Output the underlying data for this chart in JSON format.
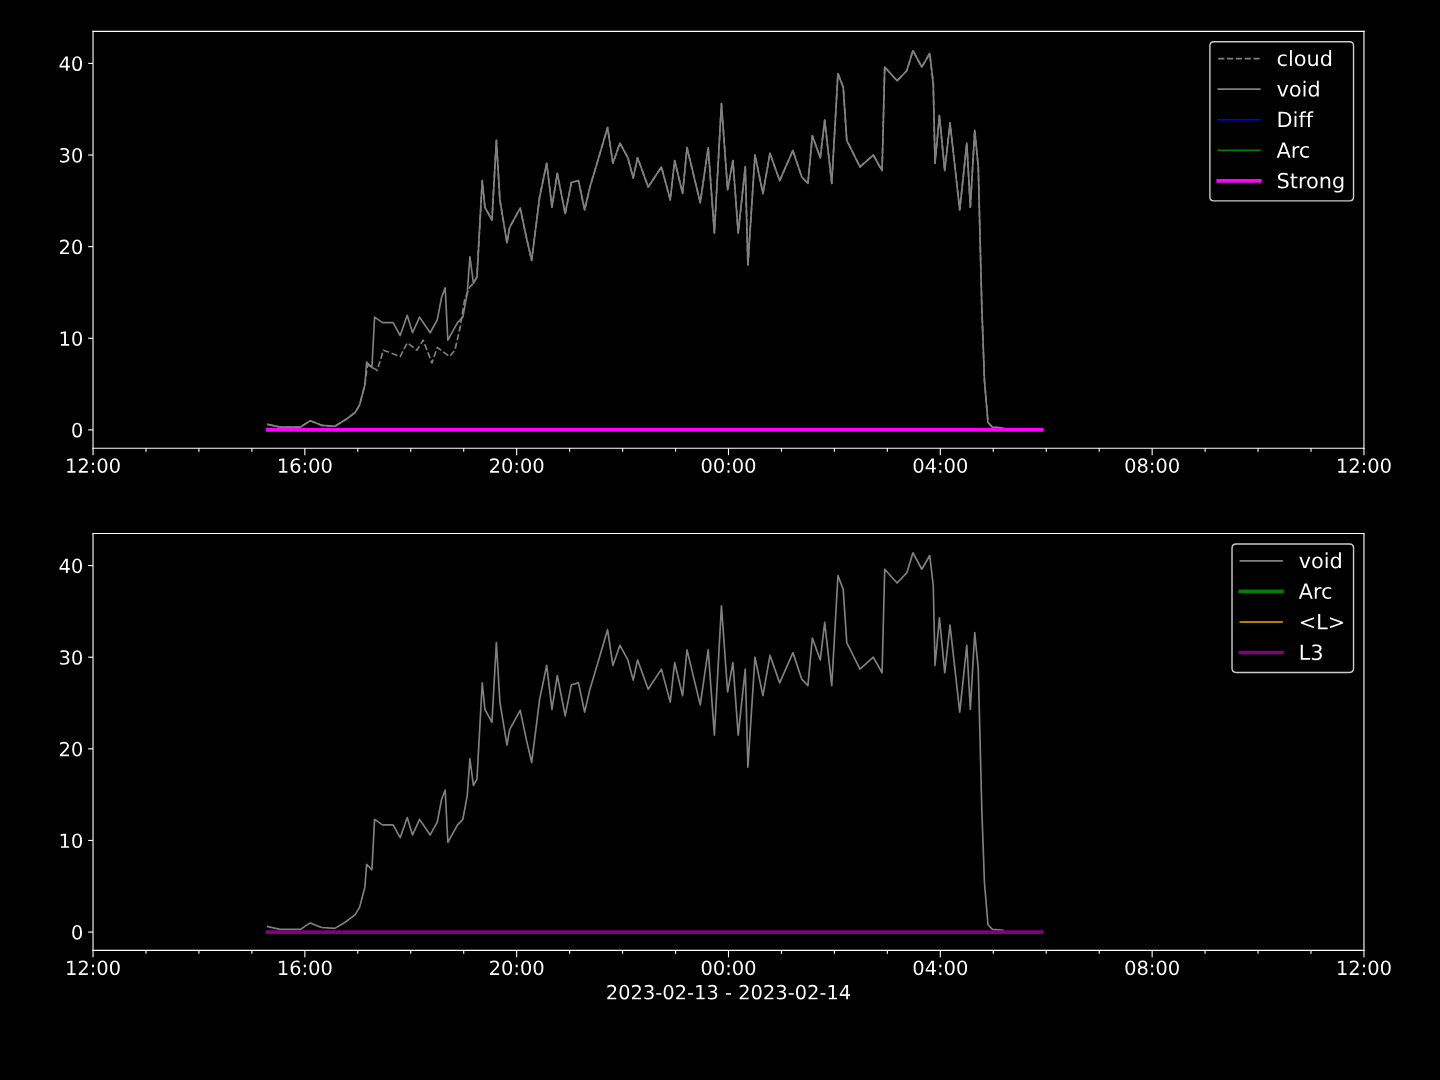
{
  "chart_data": [
    {
      "type": "line",
      "xlim": [
        "2023-02-13T12:00",
        "2023-02-14T12:00"
      ],
      "ylim": [
        -2,
        43.5
      ],
      "yticks": [
        0,
        10,
        20,
        30,
        40
      ],
      "xticks": [
        {
          "value": "2023-02-13T12:00",
          "label": "12:00"
        },
        {
          "value": "2023-02-13T13:00",
          "label": null
        },
        {
          "value": "2023-02-13T14:00",
          "label": null
        },
        {
          "value": "2023-02-13T15:00",
          "label": null
        },
        {
          "value": "2023-02-13T16:00",
          "label": "16:00"
        },
        {
          "value": "2023-02-13T17:00",
          "label": null
        },
        {
          "value": "2023-02-13T18:00",
          "label": null
        },
        {
          "value": "2023-02-13T19:00",
          "label": null
        },
        {
          "value": "2023-02-13T20:00",
          "label": "20:00"
        },
        {
          "value": "2023-02-13T21:00",
          "label": null
        },
        {
          "value": "2023-02-13T22:00",
          "label": null
        },
        {
          "value": "2023-02-13T23:00",
          "label": null
        },
        {
          "value": "2023-02-14T00:00",
          "label": "00:00"
        },
        {
          "value": "2023-02-14T01:00",
          "label": null
        },
        {
          "value": "2023-02-14T02:00",
          "label": null
        },
        {
          "value": "2023-02-14T03:00",
          "label": null
        },
        {
          "value": "2023-02-14T04:00",
          "label": "04:00"
        },
        {
          "value": "2023-02-14T05:00",
          "label": null
        },
        {
          "value": "2023-02-14T06:00",
          "label": null
        },
        {
          "value": "2023-02-14T07:00",
          "label": null
        },
        {
          "value": "2023-02-14T08:00",
          "label": "08:00"
        },
        {
          "value": "2023-02-14T09:00",
          "label": null
        },
        {
          "value": "2023-02-14T10:00",
          "label": null
        },
        {
          "value": "2023-02-14T11:00",
          "label": null
        },
        {
          "value": "2023-02-14T12:00",
          "label": "12:00"
        }
      ],
      "grid": false,
      "legend": "top right",
      "series": [
        {
          "name": "cloud",
          "color": "#808080",
          "line_style": "dashed",
          "x": [
            "2023-02-13T15:18",
            "2023-02-13T15:32",
            "2023-02-13T15:55",
            "2023-02-13T16:06",
            "2023-02-13T16:19",
            "2023-02-13T16:34",
            "2023-02-13T16:46",
            "2023-02-13T16:57",
            "2023-02-13T17:02",
            "2023-02-13T17:08",
            "2023-02-13T17:11",
            "2023-02-13T17:22",
            "2023-02-13T17:29",
            "2023-02-13T17:48",
            "2023-02-13T17:56",
            "2023-02-13T18:07",
            "2023-02-13T18:14",
            "2023-02-13T18:24",
            "2023-02-13T18:30",
            "2023-02-13T18:44",
            "2023-02-13T18:50",
            "2023-02-13T18:56",
            "2023-02-13T19:01",
            "2023-02-13T19:07",
            "2023-02-13T19:11",
            "2023-02-13T19:15",
            "2023-02-13T19:21",
            "2023-02-13T19:24",
            "2023-02-13T19:32",
            "2023-02-13T19:37",
            "2023-02-13T19:41",
            "2023-02-13T19:49",
            "2023-02-13T19:52",
            "2023-02-13T20:04",
            "2023-02-13T20:11",
            "2023-02-13T20:17",
            "2023-02-13T20:26",
            "2023-02-13T20:34",
            "2023-02-13T20:40",
            "2023-02-13T20:46",
            "2023-02-13T20:55",
            "2023-02-13T21:02",
            "2023-02-13T21:10",
            "2023-02-13T21:17",
            "2023-02-13T21:23",
            "2023-02-13T21:32",
            "2023-02-13T21:43",
            "2023-02-13T21:49",
            "2023-02-13T21:57",
            "2023-02-13T22:06",
            "2023-02-13T22:12",
            "2023-02-13T22:17",
            "2023-02-13T22:29",
            "2023-02-13T22:44",
            "2023-02-13T22:54",
            "2023-02-13T22:59",
            "2023-02-13T23:08",
            "2023-02-13T23:13",
            "2023-02-13T23:28",
            "2023-02-13T23:37",
            "2023-02-13T23:44",
            "2023-02-13T23:52",
            "2023-02-13T23:59",
            "2023-02-14T00:05",
            "2023-02-14T00:11",
            "2023-02-14T00:19",
            "2023-02-14T00:22",
            "2023-02-14T00:30",
            "2023-02-14T00:39",
            "2023-02-14T00:47",
            "2023-02-14T00:58",
            "2023-02-14T01:13",
            "2023-02-14T01:23",
            "2023-02-14T01:30",
            "2023-02-14T01:35",
            "2023-02-14T01:44",
            "2023-02-14T01:49",
            "2023-02-14T01:57",
            "2023-02-14T02:04",
            "2023-02-14T02:10",
            "2023-02-14T02:14",
            "2023-02-14T02:29",
            "2023-02-14T02:44",
            "2023-02-14T02:54",
            "2023-02-14T02:57",
            "2023-02-14T03:11",
            "2023-02-14T03:22",
            "2023-02-14T03:29",
            "2023-02-14T03:39",
            "2023-02-14T03:48",
            "2023-02-14T03:52",
            "2023-02-14T03:54",
            "2023-02-14T03:59",
            "2023-02-14T04:05",
            "2023-02-14T04:11",
            "2023-02-14T04:22",
            "2023-02-14T04:30",
            "2023-02-14T04:34",
            "2023-02-14T04:39",
            "2023-02-14T04:43",
            "2023-02-14T04:47",
            "2023-02-14T04:50",
            "2023-02-14T04:54",
            "2023-02-14T04:59",
            "2023-02-14T05:11"
          ],
          "values": [
            0.6,
            0.3,
            0.3,
            1.0,
            0.5,
            0.4,
            1.1,
            1.9,
            2.7,
            4.9,
            7.1,
            6.5,
            8.7,
            8.0,
            9.5,
            8.7,
            9.8,
            7.3,
            9.0,
            8.0,
            8.7,
            11.2,
            14.2,
            15.6,
            16.0,
            16.7,
            27.2,
            24.3,
            22.9,
            31.6,
            25.1,
            20.4,
            22.1,
            24.2,
            21.0,
            18.5,
            25.4,
            29.1,
            24.3,
            28.0,
            23.6,
            27.0,
            27.2,
            24.0,
            26.5,
            29.4,
            33.0,
            29.1,
            31.3,
            29.7,
            27.5,
            29.7,
            26.5,
            28.7,
            25.1,
            29.4,
            25.8,
            30.8,
            24.8,
            30.8,
            21.5,
            35.6,
            26.2,
            29.4,
            21.5,
            28.7,
            18.0,
            30.0,
            25.8,
            30.2,
            27.2,
            30.5,
            27.6,
            26.9,
            32.1,
            29.7,
            33.8,
            26.9,
            38.9,
            37.4,
            31.6,
            28.7,
            30.0,
            28.3,
            39.6,
            38.1,
            39.2,
            41.4,
            39.6,
            41.1,
            37.8,
            29.1,
            34.3,
            28.3,
            33.5,
            24.0,
            31.3,
            24.3,
            32.7,
            28.7,
            13.4,
            5.4,
            0.8,
            0.3,
            0.2
          ]
        },
        {
          "name": "void",
          "color": "#808080",
          "line_style": "solid",
          "x": [
            "2023-02-13T15:18",
            "2023-02-13T15:32",
            "2023-02-13T15:55",
            "2023-02-13T16:06",
            "2023-02-13T16:19",
            "2023-02-13T16:34",
            "2023-02-13T16:46",
            "2023-02-13T16:57",
            "2023-02-13T17:02",
            "2023-02-13T17:08",
            "2023-02-13T17:10",
            "2023-02-13T17:16",
            "2023-02-13T17:19",
            "2023-02-13T17:28",
            "2023-02-13T17:40",
            "2023-02-13T17:48",
            "2023-02-13T17:56",
            "2023-02-13T18:02",
            "2023-02-13T18:10",
            "2023-02-13T18:22",
            "2023-02-13T18:30",
            "2023-02-13T18:35",
            "2023-02-13T18:39",
            "2023-02-13T18:42",
            "2023-02-13T18:53",
            "2023-02-13T18:59",
            "2023-02-13T19:04",
            "2023-02-13T19:07",
            "2023-02-13T19:11",
            "2023-02-13T19:15",
            "2023-02-13T19:21",
            "2023-02-13T19:24",
            "2023-02-13T19:32",
            "2023-02-13T19:37",
            "2023-02-13T19:41",
            "2023-02-13T19:49",
            "2023-02-13T19:52",
            "2023-02-13T20:04",
            "2023-02-13T20:11",
            "2023-02-13T20:17",
            "2023-02-13T20:26",
            "2023-02-13T20:34",
            "2023-02-13T20:40",
            "2023-02-13T20:46",
            "2023-02-13T20:55",
            "2023-02-13T21:02",
            "2023-02-13T21:10",
            "2023-02-13T21:17",
            "2023-02-13T21:23",
            "2023-02-13T21:32",
            "2023-02-13T21:43",
            "2023-02-13T21:49",
            "2023-02-13T21:57",
            "2023-02-13T22:06",
            "2023-02-13T22:12",
            "2023-02-13T22:17",
            "2023-02-13T22:29",
            "2023-02-13T22:44",
            "2023-02-13T22:54",
            "2023-02-13T22:59",
            "2023-02-13T23:08",
            "2023-02-13T23:13",
            "2023-02-13T23:28",
            "2023-02-13T23:37",
            "2023-02-13T23:44",
            "2023-02-13T23:52",
            "2023-02-13T23:59",
            "2023-02-14T00:05",
            "2023-02-14T00:11",
            "2023-02-14T00:19",
            "2023-02-14T00:22",
            "2023-02-14T00:30",
            "2023-02-14T00:39",
            "2023-02-14T00:47",
            "2023-02-14T00:58",
            "2023-02-14T01:13",
            "2023-02-14T01:23",
            "2023-02-14T01:30",
            "2023-02-14T01:35",
            "2023-02-14T01:44",
            "2023-02-14T01:49",
            "2023-02-14T01:57",
            "2023-02-14T02:04",
            "2023-02-14T02:10",
            "2023-02-14T02:14",
            "2023-02-14T02:29",
            "2023-02-14T02:44",
            "2023-02-14T02:54",
            "2023-02-14T02:57",
            "2023-02-14T03:11",
            "2023-02-14T03:22",
            "2023-02-14T03:29",
            "2023-02-14T03:39",
            "2023-02-14T03:48",
            "2023-02-14T03:52",
            "2023-02-14T03:54",
            "2023-02-14T03:59",
            "2023-02-14T04:05",
            "2023-02-14T04:11",
            "2023-02-14T04:22",
            "2023-02-14T04:30",
            "2023-02-14T04:34",
            "2023-02-14T04:39",
            "2023-02-14T04:43",
            "2023-02-14T04:47",
            "2023-02-14T04:50",
            "2023-02-14T04:54",
            "2023-02-14T04:59",
            "2023-02-14T05:11"
          ],
          "values": [
            0.6,
            0.3,
            0.3,
            1.0,
            0.5,
            0.4,
            1.1,
            1.9,
            2.7,
            4.9,
            7.4,
            6.8,
            12.3,
            11.7,
            11.7,
            10.3,
            12.5,
            10.6,
            12.3,
            10.6,
            12.0,
            14.5,
            15.5,
            9.8,
            11.7,
            12.3,
            14.9,
            18.9,
            16.0,
            16.7,
            27.2,
            24.3,
            22.9,
            31.6,
            25.1,
            20.4,
            22.1,
            24.2,
            21.0,
            18.5,
            25.4,
            29.1,
            24.3,
            28.0,
            23.6,
            27.0,
            27.2,
            24.0,
            26.5,
            29.4,
            33.0,
            29.1,
            31.3,
            29.7,
            27.5,
            29.7,
            26.5,
            28.7,
            25.1,
            29.4,
            25.8,
            30.8,
            24.8,
            30.8,
            21.5,
            35.6,
            26.2,
            29.4,
            21.5,
            28.7,
            18.0,
            30.0,
            25.8,
            30.2,
            27.2,
            30.5,
            27.6,
            26.9,
            32.1,
            29.7,
            33.8,
            26.9,
            38.9,
            37.4,
            31.6,
            28.7,
            30.0,
            28.3,
            39.6,
            38.1,
            39.2,
            41.4,
            39.6,
            41.1,
            37.8,
            29.1,
            34.3,
            28.3,
            33.5,
            24.0,
            31.3,
            24.3,
            32.7,
            28.7,
            13.4,
            5.4,
            0.8,
            0.3,
            0.2
          ]
        },
        {
          "name": "Diff",
          "color": "#0000ff",
          "line_style": "solid"
        },
        {
          "name": "Arc",
          "color": "#008000",
          "line_style": "solid"
        },
        {
          "name": "Strong",
          "color": "#ff00ff",
          "line_style": "solid",
          "x": [
            "2023-02-13T15:18",
            "2023-02-14T05:55"
          ],
          "values": [
            0,
            0
          ]
        }
      ]
    },
    {
      "type": "line",
      "xlim": [
        "2023-02-13T12:00",
        "2023-02-14T12:00"
      ],
      "ylim": [
        -2,
        43.5
      ],
      "yticks": [
        0,
        10,
        20,
        30,
        40
      ],
      "xlabel": "2023-02-13 - 2023-02-14",
      "xticks": [
        {
          "value": "2023-02-13T12:00",
          "label": "12:00"
        },
        {
          "value": "2023-02-13T13:00",
          "label": null
        },
        {
          "value": "2023-02-13T14:00",
          "label": null
        },
        {
          "value": "2023-02-13T15:00",
          "label": null
        },
        {
          "value": "2023-02-13T16:00",
          "label": "16:00"
        },
        {
          "value": "2023-02-13T17:00",
          "label": null
        },
        {
          "value": "2023-02-13T18:00",
          "label": null
        },
        {
          "value": "2023-02-13T19:00",
          "label": null
        },
        {
          "value": "2023-02-13T20:00",
          "label": "20:00"
        },
        {
          "value": "2023-02-13T21:00",
          "label": null
        },
        {
          "value": "2023-02-13T22:00",
          "label": null
        },
        {
          "value": "2023-02-13T23:00",
          "label": null
        },
        {
          "value": "2023-02-14T00:00",
          "label": "00:00"
        },
        {
          "value": "2023-02-14T01:00",
          "label": null
        },
        {
          "value": "2023-02-14T02:00",
          "label": null
        },
        {
          "value": "2023-02-14T03:00",
          "label": null
        },
        {
          "value": "2023-02-14T04:00",
          "label": "04:00"
        },
        {
          "value": "2023-02-14T05:00",
          "label": null
        },
        {
          "value": "2023-02-14T06:00",
          "label": null
        },
        {
          "value": "2023-02-14T07:00",
          "label": null
        },
        {
          "value": "2023-02-14T08:00",
          "label": "08:00"
        },
        {
          "value": "2023-02-14T09:00",
          "label": null
        },
        {
          "value": "2023-02-14T10:00",
          "label": null
        },
        {
          "value": "2023-02-14T11:00",
          "label": null
        },
        {
          "value": "2023-02-14T12:00",
          "label": "12:00"
        }
      ],
      "grid": false,
      "legend": "top right",
      "series": [
        {
          "name": "void",
          "color": "#808080",
          "line_style": "solid",
          "x": [
            "2023-02-13T15:18",
            "2023-02-13T15:32",
            "2023-02-13T15:55",
            "2023-02-13T16:06",
            "2023-02-13T16:19",
            "2023-02-13T16:34",
            "2023-02-13T16:46",
            "2023-02-13T16:57",
            "2023-02-13T17:02",
            "2023-02-13T17:08",
            "2023-02-13T17:10",
            "2023-02-13T17:16",
            "2023-02-13T17:19",
            "2023-02-13T17:28",
            "2023-02-13T17:40",
            "2023-02-13T17:48",
            "2023-02-13T17:56",
            "2023-02-13T18:02",
            "2023-02-13T18:10",
            "2023-02-13T18:22",
            "2023-02-13T18:30",
            "2023-02-13T18:35",
            "2023-02-13T18:39",
            "2023-02-13T18:42",
            "2023-02-13T18:53",
            "2023-02-13T18:59",
            "2023-02-13T19:04",
            "2023-02-13T19:07",
            "2023-02-13T19:11",
            "2023-02-13T19:15",
            "2023-02-13T19:21",
            "2023-02-13T19:24",
            "2023-02-13T19:32",
            "2023-02-13T19:37",
            "2023-02-13T19:41",
            "2023-02-13T19:49",
            "2023-02-13T19:52",
            "2023-02-13T20:04",
            "2023-02-13T20:11",
            "2023-02-13T20:17",
            "2023-02-13T20:26",
            "2023-02-13T20:34",
            "2023-02-13T20:40",
            "2023-02-13T20:46",
            "2023-02-13T20:55",
            "2023-02-13T21:02",
            "2023-02-13T21:10",
            "2023-02-13T21:17",
            "2023-02-13T21:23",
            "2023-02-13T21:32",
            "2023-02-13T21:43",
            "2023-02-13T21:49",
            "2023-02-13T21:57",
            "2023-02-13T22:06",
            "2023-02-13T22:12",
            "2023-02-13T22:17",
            "2023-02-13T22:29",
            "2023-02-13T22:44",
            "2023-02-13T22:54",
            "2023-02-13T22:59",
            "2023-02-13T23:08",
            "2023-02-13T23:13",
            "2023-02-13T23:28",
            "2023-02-13T23:37",
            "2023-02-13T23:44",
            "2023-02-13T23:52",
            "2023-02-13T23:59",
            "2023-02-14T00:05",
            "2023-02-14T00:11",
            "2023-02-14T00:19",
            "2023-02-14T00:22",
            "2023-02-14T00:30",
            "2023-02-14T00:39",
            "2023-02-14T00:47",
            "2023-02-14T00:58",
            "2023-02-14T01:13",
            "2023-02-14T01:23",
            "2023-02-14T01:30",
            "2023-02-14T01:35",
            "2023-02-14T01:44",
            "2023-02-14T01:49",
            "2023-02-14T01:57",
            "2023-02-14T02:04",
            "2023-02-14T02:10",
            "2023-02-14T02:14",
            "2023-02-14T02:29",
            "2023-02-14T02:44",
            "2023-02-14T02:54",
            "2023-02-14T02:57",
            "2023-02-14T03:11",
            "2023-02-14T03:22",
            "2023-02-14T03:29",
            "2023-02-14T03:39",
            "2023-02-14T03:48",
            "2023-02-14T03:52",
            "2023-02-14T03:54",
            "2023-02-14T03:59",
            "2023-02-14T04:05",
            "2023-02-14T04:11",
            "2023-02-14T04:22",
            "2023-02-14T04:30",
            "2023-02-14T04:34",
            "2023-02-14T04:39",
            "2023-02-14T04:43",
            "2023-02-14T04:47",
            "2023-02-14T04:50",
            "2023-02-14T04:54",
            "2023-02-14T04:59",
            "2023-02-14T05:11"
          ],
          "values": [
            0.6,
            0.3,
            0.3,
            1.0,
            0.5,
            0.4,
            1.1,
            1.9,
            2.7,
            4.9,
            7.4,
            6.8,
            12.3,
            11.7,
            11.7,
            10.3,
            12.5,
            10.6,
            12.3,
            10.6,
            12.0,
            14.5,
            15.5,
            9.8,
            11.7,
            12.3,
            14.9,
            18.9,
            16.0,
            16.7,
            27.2,
            24.3,
            22.9,
            31.6,
            25.1,
            20.4,
            22.1,
            24.2,
            21.0,
            18.5,
            25.4,
            29.1,
            24.3,
            28.0,
            23.6,
            27.0,
            27.2,
            24.0,
            26.5,
            29.4,
            33.0,
            29.1,
            31.3,
            29.7,
            27.5,
            29.7,
            26.5,
            28.7,
            25.1,
            29.4,
            25.8,
            30.8,
            24.8,
            30.8,
            21.5,
            35.6,
            26.2,
            29.4,
            21.5,
            28.7,
            18.0,
            30.0,
            25.8,
            30.2,
            27.2,
            30.5,
            27.6,
            26.9,
            32.1,
            29.7,
            33.8,
            26.9,
            38.9,
            37.4,
            31.6,
            28.7,
            30.0,
            28.3,
            39.6,
            38.1,
            39.2,
            41.4,
            39.6,
            41.1,
            37.8,
            29.1,
            34.3,
            28.3,
            33.5,
            24.0,
            31.3,
            24.3,
            32.7,
            28.7,
            13.4,
            5.4,
            0.8,
            0.3,
            0.2
          ]
        },
        {
          "name": "Arc",
          "color": "#008000",
          "line_style": "solid"
        },
        {
          "name": "<L>",
          "color": "#ffa500",
          "line_style": "solid"
        },
        {
          "name": "L3",
          "color": "#800080",
          "line_style": "solid",
          "x": [
            "2023-02-13T15:18",
            "2023-02-14T05:55"
          ],
          "values": [
            0,
            0
          ]
        }
      ]
    }
  ]
}
